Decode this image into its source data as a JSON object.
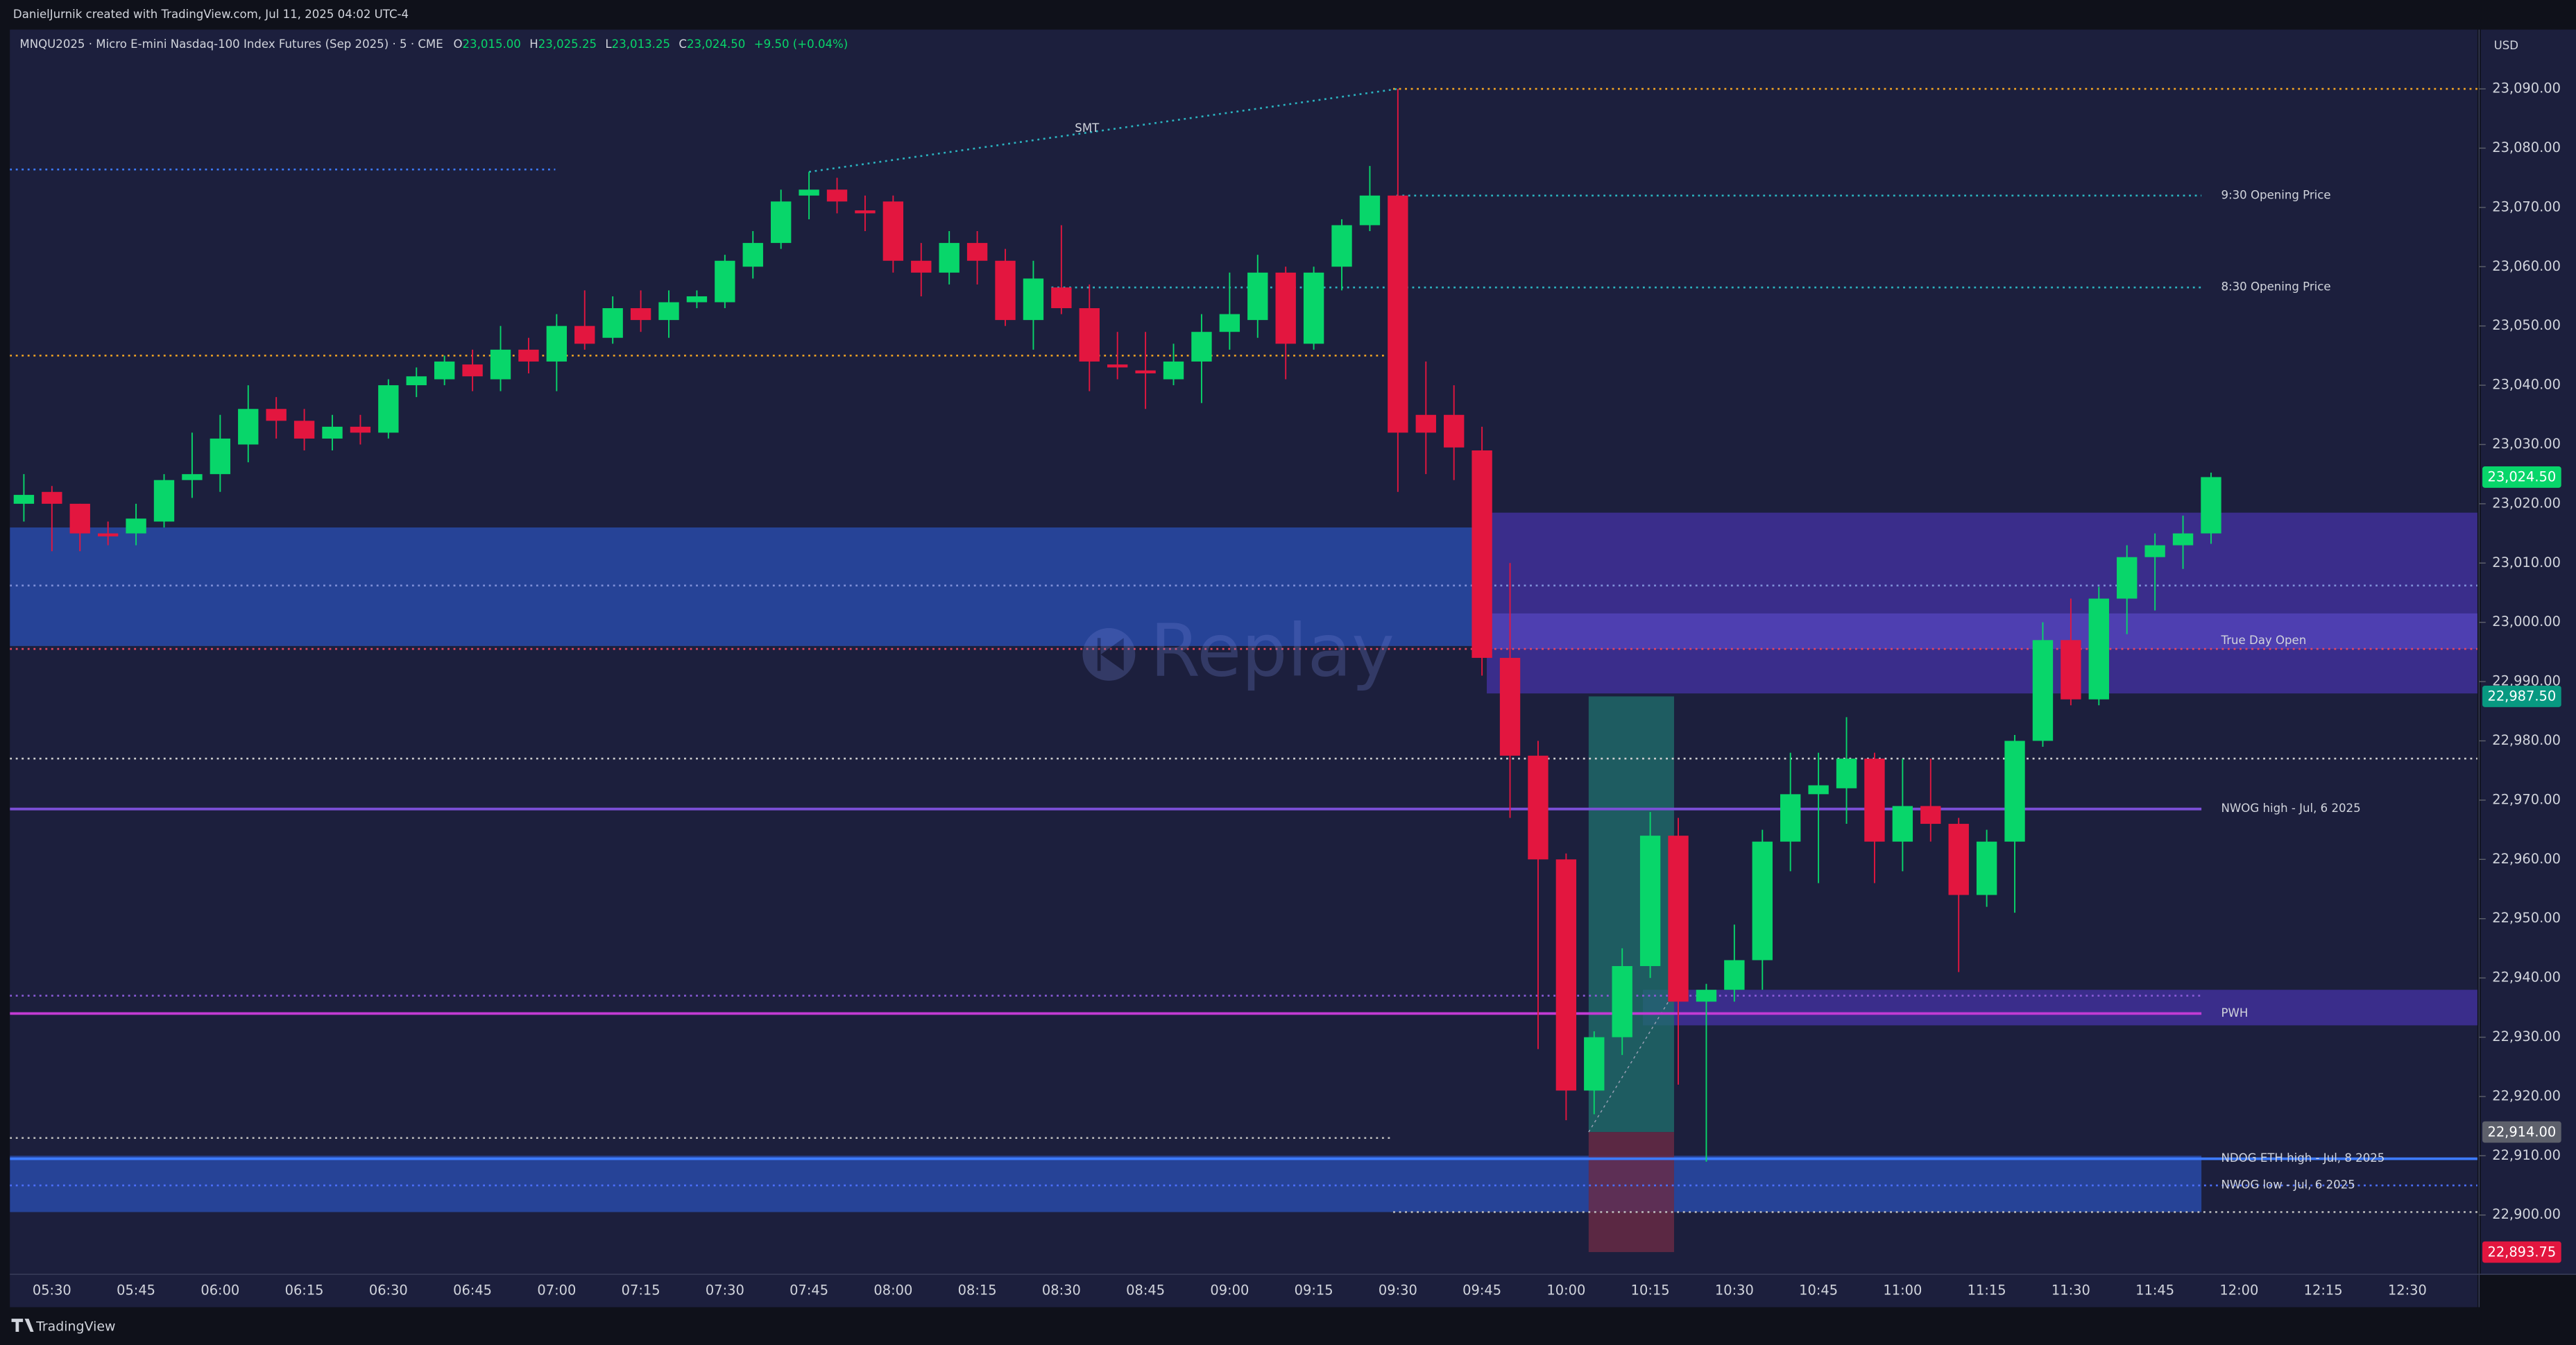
{
  "header": {
    "credit": "DanielJurnik created with TradingView.com, Jul 11, 2025 04:02 UTC-4",
    "currency": "USD",
    "brand": "TradingView",
    "watermark": "Replay"
  },
  "chart_data": {
    "type": "candlestick",
    "symbol": "MNQU2025 · Micro E-mini Nasdaq-100 Index Futures (Sep 2025) · 5 · CME",
    "legend": {
      "o_label": "O",
      "o": "23,015.00",
      "h_label": "H",
      "h": "23,025.25",
      "l_label": "L",
      "l": "23,013.25",
      "c_label": "C",
      "c": "23,024.50",
      "change": "+9.50 (+0.04%)"
    },
    "categories": [
      null,
      "05:30",
      null,
      null,
      "05:45",
      null,
      null,
      "06:00",
      null,
      null,
      "06:15",
      null,
      null,
      "06:30",
      null,
      null,
      "06:45",
      null,
      null,
      "07:00",
      null,
      null,
      "07:15",
      null,
      null,
      "07:30",
      null,
      null,
      "07:45",
      null,
      null,
      "08:00",
      null,
      null,
      "08:15",
      null,
      null,
      "08:30",
      null,
      null,
      "08:45",
      null,
      null,
      "09:00",
      null,
      null,
      "09:15",
      null,
      null,
      "09:30",
      null,
      null,
      "09:45",
      null,
      null,
      "10:00",
      null,
      null,
      "10:15",
      null,
      null,
      "10:30",
      null,
      null,
      "10:45",
      null,
      null,
      "11:00",
      null,
      null,
      "11:15",
      null,
      null,
      "11:30",
      null,
      null,
      "11:45",
      null,
      null,
      "12:00",
      null,
      null,
      "12:15",
      null,
      null,
      "12:30",
      null,
      null
    ],
    "open": [
      23020,
      23022,
      23020,
      23015,
      23015,
      23017,
      23024,
      23025,
      23030,
      23036,
      23034,
      23031,
      23033,
      23032,
      23040,
      23041,
      23043.5,
      23041,
      23046,
      23044,
      23050,
      23048,
      23053,
      23051,
      23054,
      23054,
      23060,
      23064,
      23072,
      23073,
      23069.5,
      23071,
      23061,
      23059,
      23064,
      23061,
      23051,
      23056.5,
      23053,
      23043.5,
      23042.5,
      23041,
      23044,
      23049,
      23051,
      23059,
      23047,
      23060,
      23067,
      23072,
      23035,
      23035,
      23029,
      22994,
      22977.5,
      22960,
      22921,
      22930,
      22942,
      22964,
      22936,
      22938,
      22943,
      22963,
      22971,
      22972,
      22977,
      22963,
      22969,
      22966,
      22954,
      22963,
      22980,
      22997,
      22987,
      23004,
      23011,
      23013,
      23015,
      null,
      null,
      null,
      null,
      null,
      null,
      null,
      null,
      null
    ],
    "high": [
      23025,
      23023,
      23020,
      23017,
      23020,
      23025,
      23032,
      23035,
      23040,
      23038,
      23036,
      23035,
      23035,
      23041,
      23043,
      23045,
      23046,
      23050,
      23048,
      23052,
      23056,
      23055,
      23056,
      23056,
      23056,
      23062,
      23066,
      23073,
      23076,
      23075,
      23072,
      23072,
      23064,
      23066,
      23066,
      23063,
      23061,
      23067,
      23057,
      23049,
      23049,
      23047,
      23052,
      23059,
      23062,
      23060,
      23060,
      23068,
      23077,
      23090,
      23044,
      23040,
      23033,
      23010,
      22980,
      22961,
      22931,
      22945,
      22968,
      22967,
      22939,
      22949,
      22965,
      22978,
      22978,
      22984,
      22978,
      22977,
      22977,
      22967,
      22965,
      22981,
      23000,
      23004,
      23006,
      23013,
      23015,
      23018,
      23025.25,
      null,
      null,
      null,
      null,
      null,
      null,
      null,
      null,
      null
    ],
    "low": [
      23017,
      23012,
      23012,
      23013,
      23013,
      23016,
      23021,
      23022,
      23027,
      23031,
      23029,
      23029,
      23030,
      23031,
      23038,
      23040,
      23039,
      23039,
      23042,
      23039,
      23046,
      23047,
      23049,
      23048,
      23053,
      23053,
      23058,
      23063,
      23068,
      23069,
      23066,
      23059,
      23055,
      23057,
      23057,
      23050,
      23046,
      23052,
      23039,
      23041,
      23036,
      23040,
      23037,
      23046,
      23048,
      23041,
      23046,
      23056,
      23066,
      23022,
      23025,
      23024,
      22991,
      22967,
      22928,
      22916,
      22917,
      22927,
      22940,
      22922,
      22909,
      22936,
      22938,
      22958,
      22956,
      22966,
      22956,
      22958,
      22963,
      22941,
      22952,
      22951,
      22979,
      22986,
      22986,
      22998,
      23002,
      23009,
      23013.25,
      null,
      null,
      null,
      null,
      null,
      null,
      null,
      null,
      null
    ],
    "close": [
      23021.5,
      23020,
      23015,
      23014.5,
      23017.5,
      23024,
      23025,
      23031,
      23036,
      23034,
      23031,
      23033,
      23032,
      23040,
      23041.5,
      23044,
      23041.5,
      23046,
      23044,
      23050,
      23047,
      23053,
      23051,
      23054,
      23055,
      23061,
      23064,
      23071,
      23073,
      23071,
      23069,
      23061,
      23059,
      23064,
      23061,
      23051,
      23058,
      23053,
      23044,
      23043,
      23042,
      23044,
      23049,
      23052,
      23059,
      23047,
      23059,
      23067,
      23072,
      23032,
      23032,
      23029.5,
      22994,
      22977.5,
      22960,
      22921,
      22930,
      22942,
      22964,
      22936,
      22938,
      22943,
      22963,
      22971,
      22972.5,
      22977,
      22963,
      22969,
      22966,
      22954,
      22963,
      22980,
      22997,
      22987,
      23004,
      23011,
      23013,
      23015,
      23024.5,
      null,
      null,
      null,
      null,
      null,
      null,
      null,
      null,
      null
    ],
    "up_color": "#08d66a",
    "down_color": "#e3163f",
    "ylim": [
      22890,
      23100
    ],
    "yticks": [
      {
        "value": 23090,
        "label": "23,090.00"
      },
      {
        "value": 23080,
        "label": "23,080.00"
      },
      {
        "value": 23070,
        "label": "23,070.00"
      },
      {
        "value": 23060,
        "label": "23,060.00"
      },
      {
        "value": 23050,
        "label": "23,050.00"
      },
      {
        "value": 23040,
        "label": "23,040.00"
      },
      {
        "value": 23030,
        "label": "23,030.00"
      },
      {
        "value": 23020,
        "label": "23,020.00"
      },
      {
        "value": 23010,
        "label": "23,010.00"
      },
      {
        "value": 23000,
        "label": "23,000.00"
      },
      {
        "value": 22990,
        "label": "22,990.00"
      },
      {
        "value": 22980,
        "label": "22,980.00"
      },
      {
        "value": 22970,
        "label": "22,970.00"
      },
      {
        "value": 22960,
        "label": "22,960.00"
      },
      {
        "value": 22950,
        "label": "22,950.00"
      },
      {
        "value": 22940,
        "label": "22,940.00"
      },
      {
        "value": 22930,
        "label": "22,930.00"
      },
      {
        "value": 22920,
        "label": "22,920.00"
      },
      {
        "value": 22910,
        "label": "22,910.00"
      },
      {
        "value": 22900,
        "label": "22,900.00"
      }
    ],
    "grid": false,
    "last_price": {
      "value": 23024.5,
      "label": "23,024.50",
      "color": "#08d66a"
    },
    "position": {
      "target": 22987.5,
      "target_label": "22,987.50",
      "entry": 22914,
      "entry_label": "22,914.00",
      "stop": 22893.75,
      "stop_label": "22,893.75",
      "profit_color": "#1f6b6a",
      "loss_color": "#6b2a45",
      "target_color": "#089981",
      "entry_color": "#5d606b",
      "stop_color": "#e3163f"
    },
    "zones": [
      {
        "top": 23016,
        "bottom": 22996,
        "color": "#2a50b5"
      },
      {
        "top": 23018.5,
        "bottom": 22988,
        "color": "#4433a6"
      },
      {
        "top": 23001.5,
        "bottom": 22995.5,
        "color": "#5646bd"
      },
      {
        "top": 22938,
        "bottom": 22932,
        "color": "#4433a6"
      },
      {
        "top": 22910,
        "bottom": 22900.5,
        "color": "#2a50b5"
      }
    ],
    "levels": [
      {
        "price": 23090,
        "color": "#f5a623",
        "style": "dotted"
      },
      {
        "price": 23076.4,
        "color": "#3d7bff",
        "style": "dotted"
      },
      {
        "price": 23072,
        "color": "#2bb3c0",
        "style": "dotted",
        "label": "9:30 Opening Price"
      },
      {
        "price": 23056.5,
        "color": "#2bb3c0",
        "style": "dotted",
        "label": "8:30 Opening Price"
      },
      {
        "price": 23045,
        "color": "#f5a623",
        "style": "dotted"
      },
      {
        "price": 23006.2,
        "color": "#7f8fd8",
        "style": "dotted"
      },
      {
        "price": 22995.5,
        "color": "#e5475f",
        "style": "dotted",
        "label": "True Day Open"
      },
      {
        "price": 22977,
        "color": "#d0d0d0",
        "style": "dotted"
      },
      {
        "price": 22968.5,
        "color": "#7b4fd6",
        "style": "solid",
        "label": "NWOG high - Jul, 6 2025"
      },
      {
        "price": 22937,
        "color": "#8a5ad8",
        "style": "dotted"
      },
      {
        "price": 22934,
        "color": "#c23bd4",
        "style": "solid",
        "label": "PWH"
      },
      {
        "price": 22913,
        "color": "#bbbbbb",
        "style": "dotted"
      },
      {
        "price": 22909.5,
        "color": "#3d7bff",
        "style": "solid",
        "label": "NDOG ETH high - Jul, 8 2025"
      },
      {
        "price": 22905,
        "color": "#4c6fff",
        "style": "dotted",
        "label": "NWOG low - Jul, 6 2025"
      },
      {
        "price": 22900.5,
        "color": "#bbbbbb",
        "style": "dotted"
      }
    ],
    "smt": {
      "label": "SMT",
      "from": 23076,
      "to": 23090,
      "color": "#2bb3c0"
    }
  }
}
